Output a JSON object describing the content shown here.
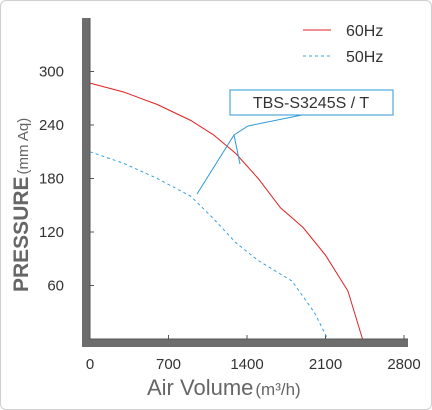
{
  "chart_data": {
    "type": "line",
    "title": "",
    "xlabel": "Air Volume",
    "xunit": "(m³/h)",
    "ylabel": "PRESSURE",
    "yunit": "(mm Aq)",
    "xlim": [
      0,
      2800
    ],
    "ylim": [
      0,
      360
    ],
    "xticks": [
      "0",
      "700",
      "1400",
      "2100",
      "2800"
    ],
    "yticks": [
      "60",
      "120",
      "180",
      "240",
      "300"
    ],
    "grid": false,
    "legend_position": "top-right",
    "annotation": "TBS-S3245S / T",
    "series": [
      {
        "name": "60Hz",
        "style": "solid",
        "color": "#e02020",
        "x": [
          0,
          300,
          600,
          900,
          1100,
          1300,
          1500,
          1700,
          1900,
          2100,
          2300,
          2430
        ],
        "y": [
          287,
          277,
          263,
          245,
          229,
          208,
          180,
          147,
          125,
          94,
          54,
          0
        ]
      },
      {
        "name": "50Hz",
        "style": "dashed",
        "color": "#3aa0e0",
        "x": [
          0,
          300,
          600,
          900,
          1100,
          1300,
          1500,
          1800,
          2000,
          2120
        ],
        "y": [
          210,
          197,
          180,
          160,
          135,
          108,
          88,
          65,
          30,
          0
        ]
      }
    ]
  }
}
